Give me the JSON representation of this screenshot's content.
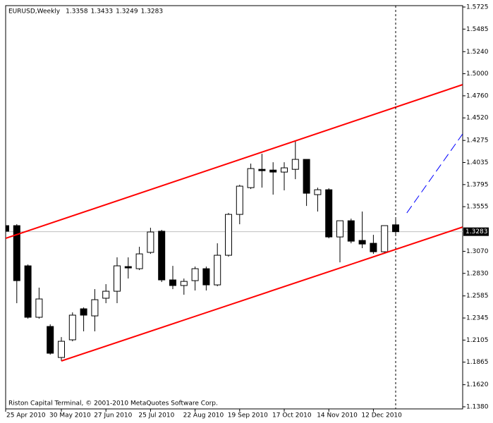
{
  "chart_data": {
    "type": "candlestick",
    "title": "EURUSD,Weekly",
    "footer": "Riston Capital Terminal, © 2001-2010 MetaQuotes Software Corp.",
    "categories": [
      "25 Apr 2010",
      null,
      null,
      null,
      null,
      "30 May 2010",
      null,
      null,
      null,
      "27 Jun 2010",
      null,
      null,
      null,
      "25 Jul 2010",
      null,
      null,
      null,
      "22 Aug 2010",
      null,
      null,
      null,
      "19 Sep 2010",
      null,
      null,
      null,
      "17 Oct 2010",
      null,
      null,
      null,
      "14 Nov 2010",
      null,
      null,
      null,
      "12 Dec 2010",
      null,
      null
    ],
    "open": [
      1.3349,
      1.3349,
      1.2912,
      1.2353,
      1.2253,
      1.1916,
      1.2108,
      1.2445,
      1.2368,
      1.256,
      1.2636,
      1.2904,
      1.2881,
      1.3058,
      1.3288,
      1.2759,
      1.2698,
      1.2751,
      1.2881,
      1.2705,
      1.3027,
      1.3471,
      1.3762,
      1.3961,
      1.3953,
      1.3931,
      1.3961,
      1.4069,
      1.3686,
      1.3739,
      1.3226,
      1.3402,
      1.3188,
      1.3157,
      1.3065,
      1.3358
    ],
    "high": [
      1.3387,
      1.3365,
      1.2927,
      1.2675,
      1.2276,
      1.2138,
      1.2406,
      1.246,
      1.2659,
      1.2713,
      1.3004,
      1.3004,
      1.3119,
      1.3326,
      1.3303,
      1.2912,
      1.2774,
      1.2904,
      1.2904,
      1.3157,
      1.3487,
      1.3793,
      1.4023,
      1.413,
      1.4038,
      1.4038,
      1.4268,
      1.4069,
      1.3762,
      1.3755,
      1.3402,
      1.3425,
      1.3502,
      1.3249,
      1.3349,
      1.3433
    ],
    "low": [
      1.3273,
      1.2506,
      1.2338,
      1.2338,
      1.1947,
      1.1878,
      1.2092,
      1.22,
      1.22,
      1.2506,
      1.2506,
      1.2774,
      1.2866,
      1.3042,
      1.2736,
      1.2659,
      1.2598,
      1.2644,
      1.2644,
      1.269,
      1.3012,
      1.3364,
      1.3747,
      1.3762,
      1.3686,
      1.3732,
      1.3854,
      1.3563,
      1.3502,
      1.3211,
      1.295,
      1.3157,
      1.3104,
      1.3042,
      1.305,
      1.3249
    ],
    "close": [
      1.3288,
      1.2751,
      1.2353,
      1.2552,
      1.1962,
      1.2092,
      1.2376,
      1.2376,
      1.2544,
      1.2636,
      1.2912,
      1.2889,
      1.3042,
      1.328,
      1.2759,
      1.2698,
      1.2743,
      1.2881,
      1.2705,
      1.3027,
      1.3471,
      1.3778,
      1.3969,
      1.3946,
      1.3931,
      1.3977,
      1.4069,
      1.3701,
      1.3739,
      1.3226,
      1.3402,
      1.318,
      1.3149,
      1.3065,
      1.3349,
      1.3283
    ],
    "ylim": [
      1.1357,
      1.574
    ],
    "yticks": [
      1.5725,
      1.5485,
      {
        "value": 1.524,
        "label": "1.5240"
      },
      {
        "value": 1.5,
        "label": "1.5000"
      },
      {
        "value": 1.476,
        "label": "1.4760"
      },
      {
        "value": 1.452,
        "label": "1.4520"
      },
      1.4275,
      1.4035,
      1.3795,
      1.3555,
      {
        "value": 1.307,
        "label": "1.3070"
      },
      {
        "value": 1.283,
        "label": "1.2830"
      },
      1.2585,
      1.2345,
      1.2105,
      1.1865,
      {
        "value": 1.162,
        "label": "1.1620"
      },
      {
        "value": 1.138,
        "label": "1.1380"
      }
    ],
    "lines": [
      {
        "x": [
          0,
          41
        ],
        "y": [
          1.3211,
          1.4881
        ],
        "color": "#ff0000",
        "style": "solid"
      },
      {
        "x": [
          5,
          41
        ],
        "y": [
          1.1878,
          1.3333
        ],
        "color": "#ff0000",
        "style": "solid"
      },
      {
        "x": [
          36,
          41
        ],
        "y": [
          1.3487,
          1.4344
        ],
        "color": "#0000ff",
        "style": "dashed"
      }
    ]
  }
}
